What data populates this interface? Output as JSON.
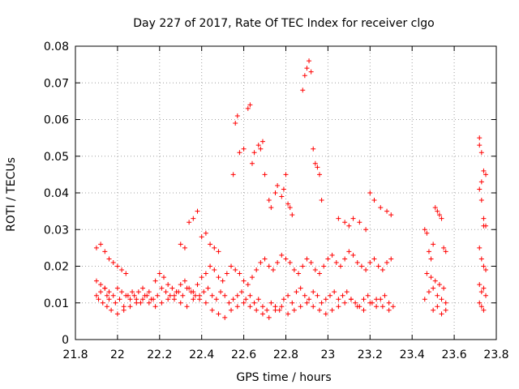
{
  "chart_data": {
    "type": "scatter",
    "title": "Day 227 of 2017, Rate Of TEC Index for receiver clgo",
    "xlabel": "GPS time / hours",
    "ylabel": "ROTI / TECUs",
    "xlim": [
      21.8,
      23.8
    ],
    "ylim": [
      0,
      0.08
    ],
    "xticks": [
      "21.8",
      "22",
      "22.2",
      "22.4",
      "22.6",
      "22.8",
      "23",
      "23.2",
      "23.4",
      "23.6",
      "23.8"
    ],
    "yticks": [
      "0",
      "0.01",
      "0.02",
      "0.03",
      "0.04",
      "0.05",
      "0.06",
      "0.07",
      "0.08"
    ],
    "grid": true,
    "marker": "plus",
    "series_color": "#ff0000",
    "series": [
      {
        "x": [
          21.9,
          21.91,
          21.92,
          21.93,
          21.94,
          21.95,
          21.96,
          21.9,
          21.92,
          21.94,
          21.96,
          21.98,
          22.0,
          22.02,
          22.04,
          21.95,
          21.97,
          21.99,
          22.01,
          22.03,
          22.05,
          22.07,
          22.09,
          22.11,
          22.13,
          22.15,
          22.17,
          22.19,
          22.21,
          22.23,
          22.25,
          22.27,
          22.29,
          22.31,
          22.33,
          22.35,
          22.37,
          22.39,
          22.41,
          22.43,
          22.45,
          22.47,
          22.49,
          22.51,
          22.53,
          22.55,
          22.57,
          22.59,
          22.61,
          22.63,
          22.65,
          22.67,
          22.69,
          22.71,
          22.73,
          22.75,
          22.77,
          22.79,
          22.81,
          22.83,
          22.85,
          22.87,
          22.89,
          22.91,
          22.93,
          22.95,
          22.97,
          22.99,
          23.01,
          23.03,
          23.05,
          23.07,
          23.09,
          23.11,
          23.13,
          23.15,
          23.17,
          23.19,
          23.21,
          23.23,
          23.25,
          23.27,
          23.29,
          23.31,
          21.9,
          21.92,
          21.94,
          21.96,
          21.98,
          22.0,
          22.02,
          22.04,
          22.06,
          22.08,
          22.1,
          22.12,
          22.14,
          22.16,
          22.18,
          22.2,
          22.22,
          22.24,
          22.26,
          22.28,
          22.3,
          22.32,
          22.34,
          22.36,
          22.38,
          22.4,
          22.42,
          22.44,
          22.46,
          22.48,
          22.5,
          22.52,
          22.54,
          22.56,
          22.58,
          22.6,
          22.62,
          22.64,
          22.66,
          22.68,
          22.7,
          22.72,
          22.74,
          22.76,
          22.78,
          22.8,
          22.82,
          22.84,
          22.86,
          22.88,
          22.9,
          22.92,
          22.94,
          22.96,
          22.98,
          23.0,
          23.02,
          23.04,
          23.06,
          23.08,
          23.1,
          23.12,
          23.14,
          23.16,
          23.18,
          23.2,
          23.22,
          23.24,
          23.26,
          23.28,
          23.3,
          22.0,
          22.03,
          22.06,
          22.09,
          22.12,
          22.15,
          22.18,
          22.21,
          22.24,
          22.27,
          22.3,
          22.33,
          22.36,
          22.39,
          22.42,
          22.45,
          22.48,
          22.51,
          22.54,
          22.57,
          22.6,
          22.63,
          22.66,
          22.69,
          22.72,
          22.75,
          22.78,
          22.81,
          22.84,
          22.87,
          22.9,
          22.93,
          22.96,
          22.99,
          23.02,
          23.05,
          23.08,
          23.11,
          23.14,
          23.17,
          23.2,
          23.23,
          23.26,
          23.29,
          22.55,
          22.56,
          22.57,
          22.58,
          22.6,
          22.62,
          22.63,
          22.64,
          22.65,
          22.67,
          22.68,
          22.69,
          22.7,
          22.72,
          22.73,
          22.75,
          22.76,
          22.78,
          22.79,
          22.8,
          22.81,
          22.82,
          22.83,
          22.88,
          22.89,
          22.9,
          22.91,
          22.92,
          22.93,
          22.94,
          22.95,
          22.96,
          22.97,
          22.3,
          22.32,
          22.34,
          22.36,
          22.38,
          22.4,
          22.42,
          22.44,
          22.46,
          22.48,
          23.05,
          23.08,
          23.1,
          23.12,
          23.15,
          23.18,
          23.2,
          23.22,
          23.25,
          23.28,
          23.3,
          23.46,
          23.47,
          23.48,
          23.49,
          23.5,
          23.51,
          23.52,
          23.53,
          23.54,
          23.55,
          23.56,
          23.46,
          23.48,
          23.5,
          23.52,
          23.54,
          23.56,
          23.47,
          23.49,
          23.51,
          23.53,
          23.55,
          23.5,
          23.52,
          23.54,
          23.56,
          23.72,
          23.73,
          23.74,
          23.75,
          23.72,
          23.73,
          23.74,
          23.75,
          23.72,
          23.73,
          23.74,
          23.75,
          23.72,
          23.74,
          23.73,
          23.75,
          23.72,
          23.73,
          23.74,
          23.72,
          23.73,
          23.74
        ],
        "y": [
          0.012,
          0.011,
          0.013,
          0.01,
          0.014,
          0.012,
          0.011,
          0.025,
          0.026,
          0.024,
          0.022,
          0.021,
          0.02,
          0.019,
          0.018,
          0.009,
          0.008,
          0.01,
          0.011,
          0.009,
          0.012,
          0.013,
          0.011,
          0.01,
          0.012,
          0.013,
          0.011,
          0.012,
          0.014,
          0.013,
          0.012,
          0.011,
          0.013,
          0.012,
          0.014,
          0.013,
          0.012,
          0.011,
          0.013,
          0.014,
          0.012,
          0.011,
          0.013,
          0.012,
          0.01,
          0.011,
          0.012,
          0.013,
          0.011,
          0.012,
          0.01,
          0.011,
          0.009,
          0.008,
          0.01,
          0.009,
          0.008,
          0.011,
          0.012,
          0.01,
          0.013,
          0.014,
          0.012,
          0.011,
          0.013,
          0.012,
          0.01,
          0.011,
          0.012,
          0.013,
          0.011,
          0.012,
          0.013,
          0.011,
          0.01,
          0.009,
          0.011,
          0.012,
          0.01,
          0.009,
          0.011,
          0.012,
          0.01,
          0.009,
          0.016,
          0.015,
          0.014,
          0.013,
          0.012,
          0.014,
          0.013,
          0.012,
          0.011,
          0.012,
          0.013,
          0.014,
          0.012,
          0.011,
          0.016,
          0.018,
          0.017,
          0.015,
          0.014,
          0.013,
          0.015,
          0.016,
          0.014,
          0.013,
          0.015,
          0.017,
          0.018,
          0.02,
          0.019,
          0.017,
          0.016,
          0.018,
          0.02,
          0.019,
          0.018,
          0.016,
          0.015,
          0.017,
          0.019,
          0.021,
          0.022,
          0.02,
          0.019,
          0.021,
          0.023,
          0.022,
          0.021,
          0.019,
          0.018,
          0.02,
          0.022,
          0.021,
          0.019,
          0.018,
          0.02,
          0.022,
          0.023,
          0.021,
          0.02,
          0.022,
          0.024,
          0.023,
          0.021,
          0.02,
          0.019,
          0.021,
          0.022,
          0.02,
          0.019,
          0.021,
          0.022,
          0.007,
          0.008,
          0.009,
          0.01,
          0.011,
          0.01,
          0.009,
          0.01,
          0.011,
          0.012,
          0.01,
          0.009,
          0.011,
          0.012,
          0.01,
          0.008,
          0.007,
          0.006,
          0.008,
          0.009,
          0.01,
          0.009,
          0.008,
          0.007,
          0.006,
          0.008,
          0.009,
          0.007,
          0.008,
          0.009,
          0.01,
          0.009,
          0.008,
          0.007,
          0.008,
          0.009,
          0.01,
          0.011,
          0.009,
          0.008,
          0.01,
          0.011,
          0.009,
          0.008,
          0.045,
          0.059,
          0.061,
          0.051,
          0.052,
          0.063,
          0.064,
          0.048,
          0.051,
          0.053,
          0.052,
          0.054,
          0.045,
          0.038,
          0.036,
          0.04,
          0.042,
          0.039,
          0.041,
          0.045,
          0.037,
          0.036,
          0.034,
          0.068,
          0.072,
          0.074,
          0.076,
          0.073,
          0.052,
          0.048,
          0.047,
          0.045,
          0.038,
          0.026,
          0.025,
          0.032,
          0.033,
          0.035,
          0.028,
          0.029,
          0.026,
          0.025,
          0.024,
          0.033,
          0.032,
          0.031,
          0.033,
          0.032,
          0.03,
          0.04,
          0.038,
          0.036,
          0.035,
          0.034,
          0.03,
          0.029,
          0.024,
          0.022,
          0.026,
          0.036,
          0.035,
          0.034,
          0.033,
          0.025,
          0.024,
          0.011,
          0.013,
          0.014,
          0.012,
          0.011,
          0.01,
          0.018,
          0.017,
          0.016,
          0.015,
          0.014,
          0.008,
          0.009,
          0.007,
          0.008,
          0.055,
          0.051,
          0.046,
          0.045,
          0.041,
          0.038,
          0.033,
          0.031,
          0.025,
          0.022,
          0.02,
          0.019,
          0.015,
          0.014,
          0.013,
          0.012,
          0.01,
          0.009,
          0.008,
          0.053,
          0.043,
          0.031
        ]
      }
    ]
  }
}
